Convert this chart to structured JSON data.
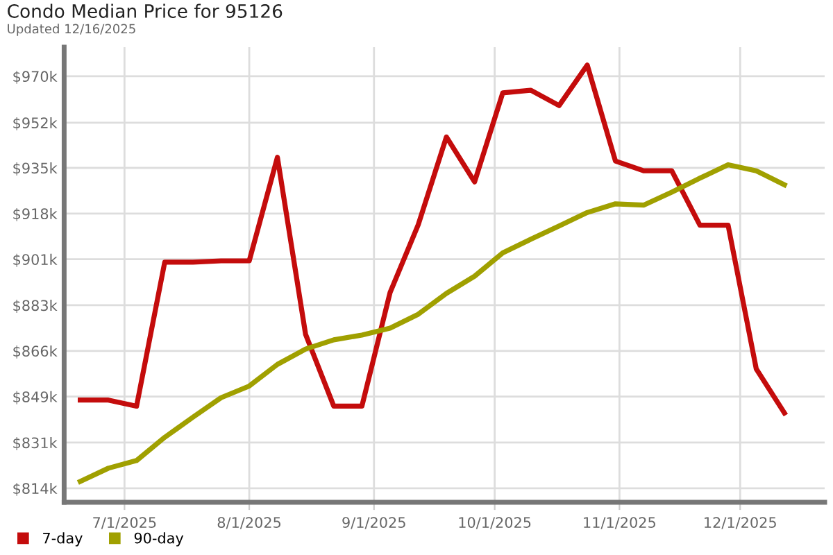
{
  "chart_data": {
    "type": "line",
    "title": "Condo Median Price for 95126",
    "subtitle": "Updated 12/16/2025",
    "x": [
      "2025-06-20",
      "2025-06-27",
      "2025-07-04",
      "2025-07-11",
      "2025-07-18",
      "2025-07-25",
      "2025-08-01",
      "2025-08-08",
      "2025-08-15",
      "2025-08-22",
      "2025-08-29",
      "2025-09-05",
      "2025-09-12",
      "2025-09-19",
      "2025-09-26",
      "2025-10-03",
      "2025-10-10",
      "2025-10-17",
      "2025-10-24",
      "2025-10-31",
      "2025-11-07",
      "2025-11-14",
      "2025-11-21",
      "2025-11-28",
      "2025-12-05",
      "2025-12-12"
    ],
    "series": [
      {
        "name": "7-day",
        "color": "#c40c0c",
        "values": [
          847.4,
          847.4,
          845.1,
          899.6,
          899.6,
          900.1,
          900.1,
          939.3,
          872.3,
          845.1,
          845.1,
          888.1,
          913.8,
          947.0,
          930.0,
          963.7,
          964.7,
          958.9,
          974.2,
          937.9,
          934.2,
          934.2,
          913.6,
          913.6,
          859.2,
          842.5
        ]
      },
      {
        "name": "90-day",
        "color": "#a0a000",
        "values": [
          816.6,
          821.6,
          824.5,
          833.3,
          840.9,
          848.3,
          852.7,
          860.9,
          866.7,
          870.2,
          872.0,
          874.6,
          879.9,
          887.8,
          894.3,
          903.1,
          908.3,
          913.3,
          918.4,
          921.7,
          921.2,
          926.1,
          931.4,
          936.5,
          934.2,
          928.9
        ]
      }
    ],
    "xlim": [
      "2025-06-16",
      "2025-12-22"
    ],
    "xticks": [
      {
        "value": "2025-07-01",
        "label": "7/1/2025"
      },
      {
        "value": "2025-08-01",
        "label": "8/1/2025"
      },
      {
        "value": "2025-09-01",
        "label": "9/1/2025"
      },
      {
        "value": "2025-10-01",
        "label": "10/1/2025"
      },
      {
        "value": "2025-11-01",
        "label": "11/1/2025"
      },
      {
        "value": "2025-12-01",
        "label": "12/1/2025"
      }
    ],
    "ylim": [
      808.7,
      981
    ],
    "yticks": [
      {
        "value": 814,
        "label": "$814k"
      },
      {
        "value": 831.3,
        "label": "$831k"
      },
      {
        "value": 848.7,
        "label": "$849k"
      },
      {
        "value": 866,
        "label": "$866k"
      },
      {
        "value": 883.3,
        "label": "$883k"
      },
      {
        "value": 900.7,
        "label": "$901k"
      },
      {
        "value": 918,
        "label": "$918k"
      },
      {
        "value": 935.3,
        "label": "$935k"
      },
      {
        "value": 952.4,
        "label": "$952k"
      },
      {
        "value": 970,
        "label": "$970k"
      }
    ],
    "grid": true,
    "legend": "bottom left",
    "marker": "none",
    "line_style": "solid"
  }
}
